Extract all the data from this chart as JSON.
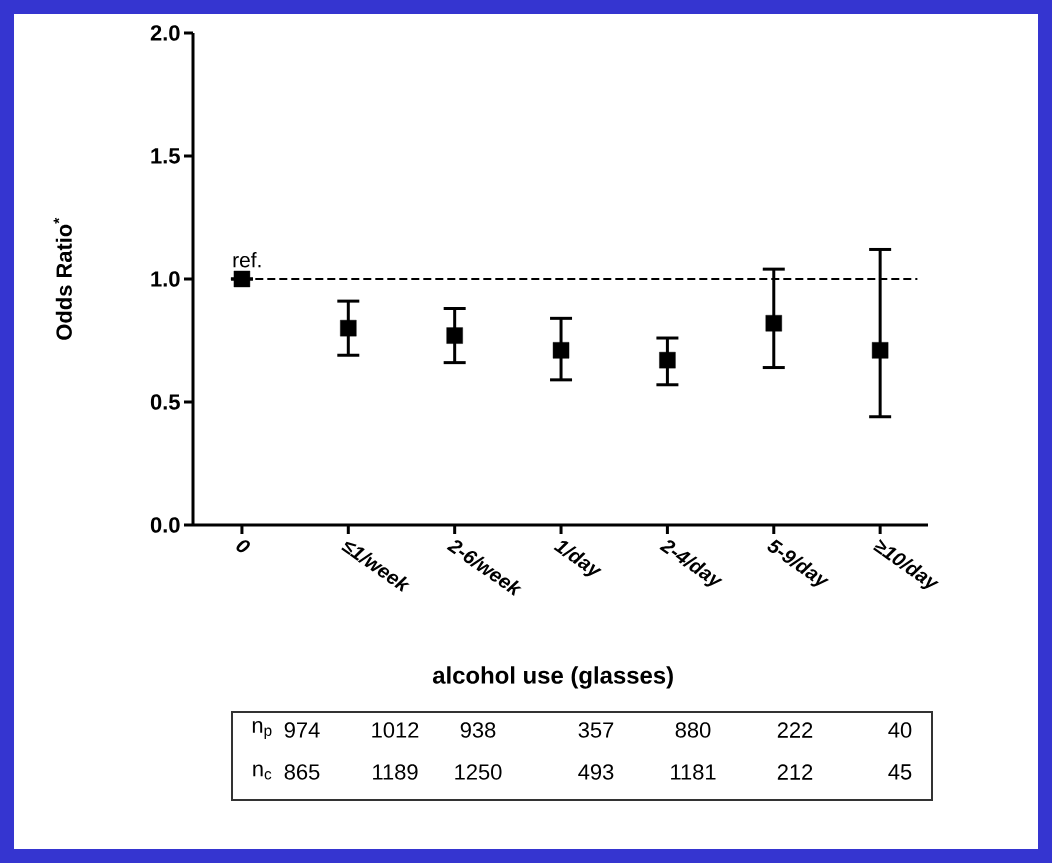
{
  "chart_data": {
    "type": "scatter",
    "xlabel": "alcohol use (glasses)",
    "ylabel": "Odds Ratio$^{*}$",
    "categories": [
      "0",
      "≤1/week",
      "2-6/week",
      "1/day",
      "2-4/day",
      "5-9/day",
      "≥10/day"
    ],
    "values": [
      1.0,
      0.8,
      0.77,
      0.71,
      0.67,
      0.82,
      0.71
    ],
    "errors": [
      null,
      [
        0.69,
        0.91
      ],
      [
        0.66,
        0.88
      ],
      [
        0.59,
        0.84
      ],
      [
        0.57,
        0.76
      ],
      [
        0.64,
        1.04
      ],
      [
        0.44,
        1.12
      ]
    ],
    "color": "#000000",
    "marker": "square",
    "ylim": [
      0,
      2.0
    ],
    "yticks": [
      {
        "value": 0,
        "label": "0.0"
      },
      {
        "value": 0.5,
        "label": "0.5"
      },
      {
        "value": 1.0,
        "label": "1.0"
      },
      {
        "value": 1.5,
        "label": "1.5"
      },
      {
        "value": 2.0,
        "label": "2.0"
      }
    ],
    "ref_lines": [
      {
        "axis": "y",
        "value": 1.0,
        "line_style": "dashed"
      }
    ],
    "annotations": [
      {
        "text": "ref.",
        "x": "0",
        "y": 1.0
      },
      "n$_{p}$",
      "974",
      "1012",
      "938",
      "357",
      "880",
      "222",
      "40",
      "n$_{c}$",
      "865",
      "1189",
      "1250",
      "493",
      "1181",
      "212",
      "45"
    ]
  }
}
